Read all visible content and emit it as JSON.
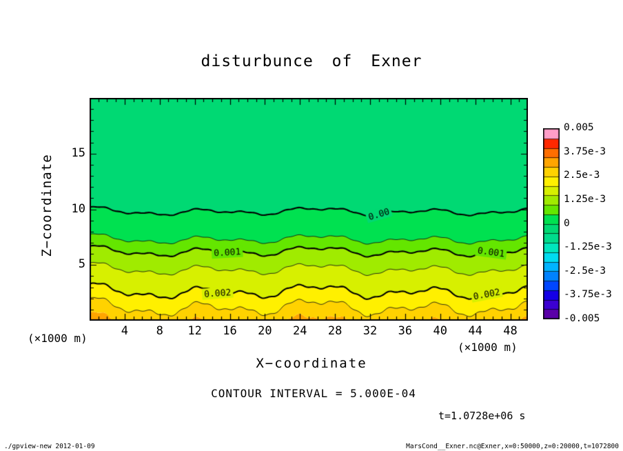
{
  "annotations": {
    "contour_interval": "CONTOUR INTERVAL = 5.000E-04",
    "time": "t=1.0728e+06 s"
  },
  "footer": {
    "left": "./gpview-new  2012-01-09",
    "right": "MarsCond__Exner.nc@Exner,x=0:50000,z=0:20000,t=1072800"
  },
  "chart_data": {
    "type": "heatmap",
    "subtype": "filled-contour",
    "title": "disturbunce of Exner",
    "x_axis": {
      "label": "X−coordinate",
      "unit": "(×1000 m)",
      "range": [
        0,
        50
      ],
      "ticks": [
        4,
        8,
        12,
        16,
        20,
        24,
        28,
        32,
        36,
        40,
        44,
        48
      ]
    },
    "z_axis": {
      "label": "Z−coordinate",
      "unit": "(×1000 m)",
      "range": [
        0,
        20
      ],
      "ticks": [
        5,
        10,
        15
      ]
    },
    "value_range": [
      -0.005,
      0.005
    ],
    "contour_interval": 0.0005,
    "palette": [
      "#5a00a8",
      "#3c00d2",
      "#1400e6",
      "#0046ff",
      "#0082ff",
      "#00b4ff",
      "#00dcf0",
      "#00e6be",
      "#00dc8c",
      "#00d973",
      "#00e150",
      "#64e600",
      "#a0eb00",
      "#d7f000",
      "#fff000",
      "#ffd200",
      "#ffa500",
      "#ff6e00",
      "#ff2800",
      "#ff9ec8"
    ],
    "colorbar_labels": [
      "0.005",
      "3.75e-3",
      "2.5e-3",
      "1.25e-3",
      "0",
      "-1.25e-3",
      "-2.5e-3",
      "-3.75e-3",
      "-0.005"
    ],
    "base_profile": {
      "z_km": [
        -2,
        0,
        2.6,
        4.6,
        6.2,
        7.3,
        9.8,
        20
      ],
      "value": [
        0.0036,
        0.0029,
        0.002,
        0.0015,
        0.001,
        0.0005,
        0.0,
        -0.00045
      ]
    },
    "wiggle": {
      "components": [
        {
          "a": 0.55,
          "k": 0.5,
          "p": 1.2
        },
        {
          "a": 0.35,
          "k": 1.13,
          "p": 0.4
        },
        {
          "a": 0.25,
          "k": 0.23,
          "p": 2.0
        },
        {
          "a": 0.1,
          "k": 3.7,
          "p": 1.0
        }
      ],
      "h_min": 0.3,
      "h_scale": 5
    },
    "thick_levels": [
      0.0,
      0.001,
      0.002
    ],
    "thin_levels": [
      0.0005,
      0.0015,
      0.0025
    ],
    "contour_labels": [
      {
        "text": "0.00",
        "level": 0.0,
        "x": 33
      },
      {
        "text": "0.001",
        "level": 0.001,
        "x": 15.7
      },
      {
        "text": "0.001",
        "level": 0.001,
        "x": 45.8
      },
      {
        "text": "0.002",
        "level": 0.002,
        "x": 14.6
      },
      {
        "text": "0.002",
        "level": 0.002,
        "x": 45.3
      }
    ]
  }
}
